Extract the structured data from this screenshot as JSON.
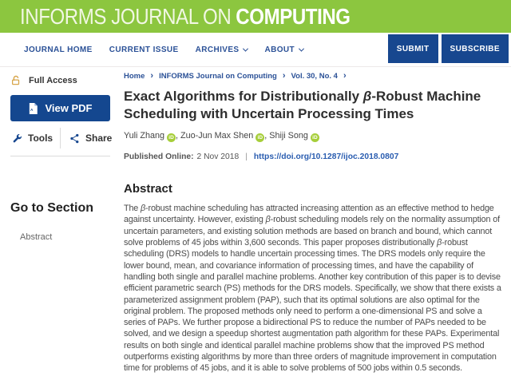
{
  "colors": {
    "brand_green": "#8CC63F",
    "button_navy": "#17478F",
    "nav_link_blue": "#2B5197",
    "doi_blue": "#2A5DB0",
    "orcid_green": "#A6CE39",
    "unlock_gold": "#D7A54A"
  },
  "header": {
    "brand": {
      "light": "INFORMS JOURNAL ON",
      "bold": "COMPUTING"
    },
    "nav": {
      "items": [
        {
          "label": "JOURNAL HOME",
          "dropdown": false
        },
        {
          "label": "CURRENT ISSUE",
          "dropdown": false
        },
        {
          "label": "ARCHIVES",
          "dropdown": true
        },
        {
          "label": "ABOUT",
          "dropdown": true
        }
      ],
      "submit_label": "SUBMIT",
      "subscribe_label": "SUBSCRIBE"
    }
  },
  "sidebar": {
    "access_label": "Full Access",
    "view_pdf_label": "View PDF",
    "tools_label": "Tools",
    "share_label": "Share",
    "goto_heading": "Go to Section",
    "goto_items": [
      {
        "label": "Abstract"
      }
    ]
  },
  "breadcrumb": {
    "items": [
      "Home",
      "INFORMS Journal on Computing",
      "Vol. 30, No. 4"
    ],
    "separator": "›"
  },
  "article": {
    "title": {
      "prefix": "Exact Algorithms for Distributionally ",
      "beta": "β",
      "suffix_line1": "-Robust Machine",
      "suffix_line2": "Scheduling with Uncertain Processing Times"
    },
    "authors": [
      {
        "name": "Yuli Zhang"
      },
      {
        "name": "Zuo-Jun Max Shen"
      },
      {
        "name": "Shiji Song"
      }
    ],
    "author_separator": ", ",
    "orcid_label": "iD",
    "published_label": "Published Online:",
    "published_date": "2 Nov 2018",
    "divider": "|",
    "doi": "https://doi.org/10.1287/ijoc.2018.0807",
    "abstract": {
      "heading": "Abstract",
      "segments": [
        {
          "t": "The "
        },
        {
          "t": "β",
          "i": true
        },
        {
          "t": "-robust machine scheduling has attracted increasing attention as an effective method to hedge against uncertainty. However, existing "
        },
        {
          "t": "β",
          "i": true
        },
        {
          "t": "-robust scheduling models rely on the normality assumption of uncertain parameters, and existing solution methods are based on branch and bound, which cannot solve problems of 45 jobs within 3,600 seconds. This paper proposes distributionally "
        },
        {
          "t": "β",
          "i": true
        },
        {
          "t": "-robust scheduling (DRS) models to handle uncertain processing times. The DRS models only require the lower bound, mean, and covariance information of processing times, and have the capability of handling both single and parallel machine problems. Another key contribution of this paper is to devise efficient parametric search (PS) methods for the DRS models. Specifically, we show that there exists a parameterized assignment problem (PAP), such that its optimal solutions are also optimal for the original problem. The proposed methods only need to perform a one-dimensional PS and solve a series of PAPs. We further propose a bidirectional PS to reduce the number of PAPs needed to be solved, and we design a speedup shortest augmentation path algorithm for these PAPs. Experimental results on both single and identical parallel machine problems show that the improved PS method outperforms existing algorithms by more than three orders of magnitude improvement in computation time for problems of 45 jobs, and it is able to solve problems of 500 jobs within 0.5 seconds."
        }
      ]
    }
  }
}
